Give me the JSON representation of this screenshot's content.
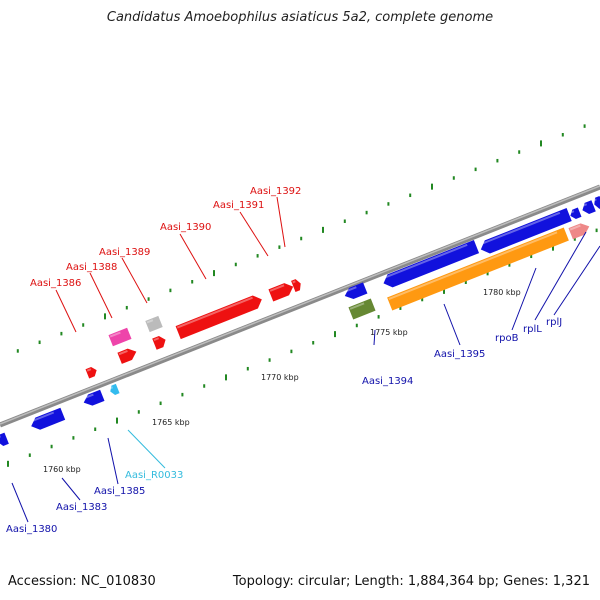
{
  "title": "Candidatus Amoebophilus asiaticus 5a2, complete genome",
  "footer": {
    "accession": "Accession: NC_010830",
    "topology": "Topology: circular; Length: 1,884,364 bp; Genes: 1,321"
  },
  "colors": {
    "backbone": "#8a8a8a",
    "forward_gene": "#ee1111",
    "reverse_gene": "#1111dd",
    "rna": "#33bbee",
    "tick": "#228822",
    "orange_gene": "#ff9911",
    "olive_gene": "#668833",
    "magenta_gene": "#ee44aa",
    "gray_gene": "#bbbbbb",
    "pink_gene": "#ee8888"
  },
  "scale_labels": [
    "1760 kbp",
    "1765 kbp",
    "1770 kbp",
    "1775 kbp",
    "1780 kbp"
  ],
  "labels": {
    "aasi_1392": "Aasi_1392",
    "aasi_1391": "Aasi_1391",
    "aasi_1390": "Aasi_1390",
    "aasi_1389": "Aasi_1389",
    "aasi_1388": "Aasi_1388",
    "aasi_1386": "Aasi_1386",
    "aasi_1395": "Aasi_1395",
    "aasi_1394": "Aasi_1394",
    "rpob": "rpoB",
    "rpil": "rplL",
    "rpij": "rplJ",
    "aasi_r0033": "Aasi_R0033",
    "aasi_1385": "Aasi_1385",
    "aasi_1383": "Aasi_1383",
    "aasi_1380": "Aasi_1380"
  }
}
